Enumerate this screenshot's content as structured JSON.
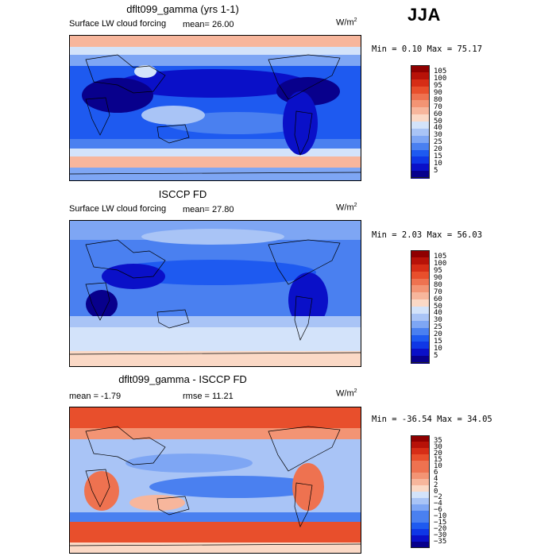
{
  "season": "JJA",
  "colors": {
    "pos": [
      "#08008c",
      "#0a10c8",
      "#0f37e6",
      "#1e5af0",
      "#4a80f0",
      "#7ea6f4",
      "#a9c4f6",
      "#d3e3fa",
      "#fbd9c6",
      "#f7b69c",
      "#f39474",
      "#ee7250",
      "#e84f2c",
      "#d62d16",
      "#b71208",
      "#8f0000"
    ],
    "diff": [
      "#08008c",
      "#0a10c8",
      "#0f37e6",
      "#1e5af0",
      "#4a80f0",
      "#7ea6f4",
      "#a9c4f6",
      "#d3e3fa",
      "#fbd9c6",
      "#f7b69c",
      "#f39474",
      "#ee7250",
      "#e84f2c",
      "#d62d16",
      "#b71208",
      "#8f0000"
    ]
  },
  "panels": [
    {
      "title": "dflt099_gamma (yrs 1-1)",
      "subtitle": "Surface LW cloud forcing",
      "stat1": "mean=  26.00",
      "stat2": "",
      "units": "W/m",
      "units_sup": "2",
      "minmax": "Min =   0.10 Max =  75.17",
      "colorbar": [
        "105",
        "100",
        "95",
        "90",
        "80",
        "70",
        "60",
        "50",
        "40",
        "30",
        "25",
        "20",
        "15",
        "10",
        "5"
      ]
    },
    {
      "title": "ISCCP FD",
      "subtitle": "Surface LW cloud forcing",
      "stat1": "mean=  27.80",
      "stat2": "",
      "units": "W/m",
      "units_sup": "2",
      "minmax": "Min =   2.03 Max =  56.03",
      "colorbar": [
        "105",
        "100",
        "95",
        "90",
        "80",
        "70",
        "60",
        "50",
        "40",
        "30",
        "25",
        "20",
        "15",
        "10",
        "5"
      ]
    },
    {
      "title": "dflt099_gamma - ISCCP FD",
      "subtitle": "",
      "stat1": "mean =  -1.79",
      "stat2": "rmse =  11.21",
      "units": "W/m",
      "units_sup": "2",
      "minmax": "Min = -36.54 Max =  34.05",
      "colorbar": [
        "35",
        "30",
        "20",
        "15",
        "10",
        "6",
        "4",
        "2",
        "0",
        "−2",
        "−4",
        "−6",
        "−10",
        "−15",
        "−20",
        "−30",
        "−35"
      ]
    }
  ]
}
